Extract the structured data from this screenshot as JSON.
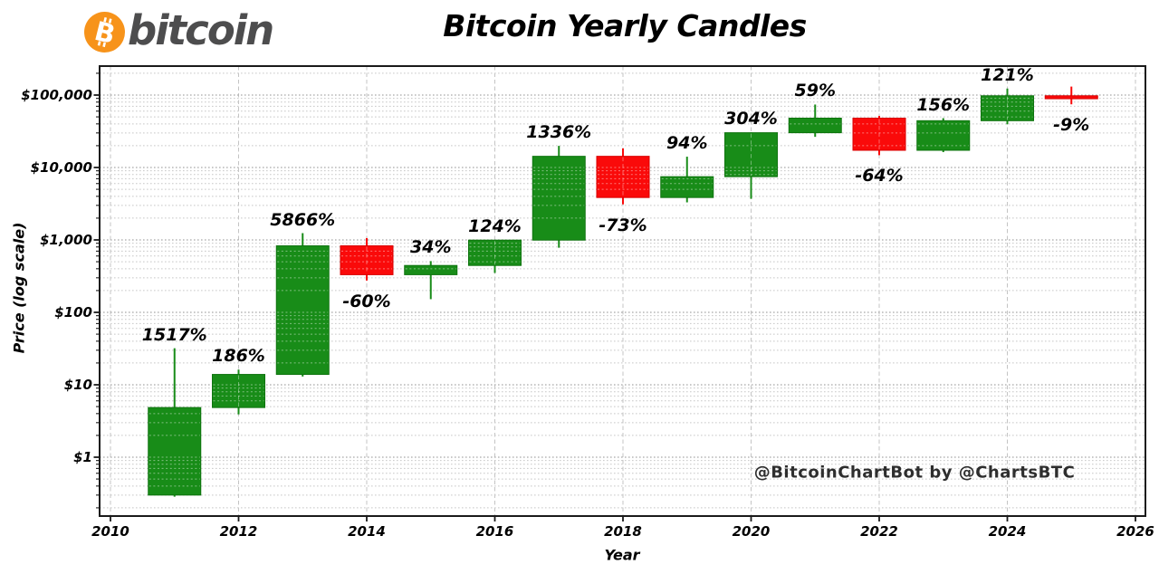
{
  "header": {
    "logo": {
      "symbol": "B",
      "brand": "bitcoin"
    },
    "title": "Bitcoin Yearly Candles"
  },
  "watermark": "@BitcoinChartBot by @ChartsBTC",
  "colors": {
    "bitcoin_orange": "#f7931a",
    "brand_gray": "#4d4d4e",
    "up_green": "#188c18",
    "down_red": "#fa0a0a",
    "axis_black": "#1a1a1a",
    "grid_gray": "#c7c7c7"
  },
  "chart_data": {
    "type": "candlestick",
    "title": "Bitcoin Yearly Candles",
    "xlabel": "Year",
    "ylabel": "Price (log scale)",
    "y_scale": "log",
    "grid": true,
    "x_ticks": [
      2010,
      2012,
      2014,
      2016,
      2018,
      2020,
      2022,
      2024,
      2026
    ],
    "y_ticks": [
      {
        "label": "$1",
        "value": 1
      },
      {
        "label": "$10",
        "value": 10
      },
      {
        "label": "$100",
        "value": 100
      },
      {
        "label": "$1,000",
        "value": 1000
      },
      {
        "label": "$10,000",
        "value": 10000
      },
      {
        "label": "$100,000",
        "value": 100000
      }
    ],
    "xlim": [
      2009.83,
      2026.18
    ],
    "ylim": [
      0.16,
      240000
    ],
    "up_color": "#188c18",
    "down_red": "#fa0a0a",
    "candles": [
      {
        "year": 2011,
        "open": 0.3,
        "high": 32,
        "low": 0.285,
        "close": 4.85,
        "change": "1517%"
      },
      {
        "year": 2012,
        "open": 4.85,
        "high": 16.2,
        "low": 3.9,
        "close": 13.9,
        "change": "186%"
      },
      {
        "year": 2013,
        "open": 13.9,
        "high": 1240,
        "low": 13.0,
        "close": 829,
        "change": "5866%"
      },
      {
        "year": 2014,
        "open": 829,
        "high": 1060,
        "low": 275,
        "close": 331,
        "change": "-60%"
      },
      {
        "year": 2015,
        "open": 331,
        "high": 510,
        "low": 152,
        "close": 444,
        "change": "34%"
      },
      {
        "year": 2016,
        "open": 444,
        "high": 1000,
        "low": 350,
        "close": 994,
        "change": "124%"
      },
      {
        "year": 2017,
        "open": 994,
        "high": 19900,
        "low": 780,
        "close": 14270,
        "change": "1336%"
      },
      {
        "year": 2018,
        "open": 14270,
        "high": 18350,
        "low": 3100,
        "close": 3850,
        "change": "-73%"
      },
      {
        "year": 2019,
        "open": 3850,
        "high": 14100,
        "low": 3300,
        "close": 7470,
        "change": "94%"
      },
      {
        "year": 2020,
        "open": 7470,
        "high": 30500,
        "low": 3700,
        "close": 30190,
        "change": "304%"
      },
      {
        "year": 2021,
        "open": 30190,
        "high": 74000,
        "low": 26500,
        "close": 48000,
        "change": "59%"
      },
      {
        "year": 2022,
        "open": 48000,
        "high": 51500,
        "low": 14800,
        "close": 17280,
        "change": "-64%"
      },
      {
        "year": 2023,
        "open": 17280,
        "high": 48000,
        "low": 16300,
        "close": 44240,
        "change": "156%"
      },
      {
        "year": 2024,
        "open": 44240,
        "high": 123000,
        "low": 39500,
        "close": 97760,
        "change": "121%"
      },
      {
        "year": 2025,
        "open": 97760,
        "high": 131000,
        "low": 74500,
        "close": 88960,
        "change": "-9%"
      }
    ]
  }
}
